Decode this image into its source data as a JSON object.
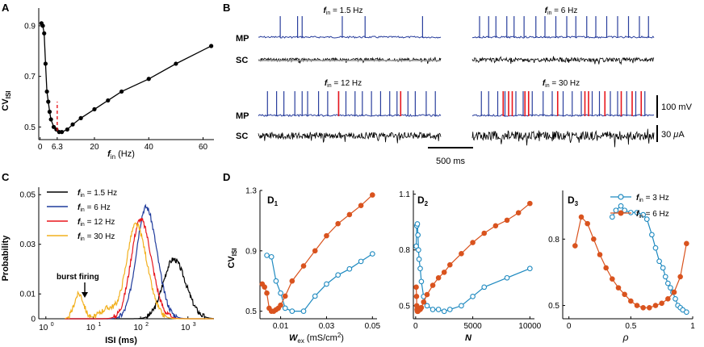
{
  "panel_labels": {
    "A": "A",
    "B": "B",
    "C": "C",
    "D": "D",
    "D1": "D",
    "D2": "D",
    "D3": "D",
    "sub1": "1",
    "sub2": "2",
    "sub3": "3"
  },
  "colors": {
    "black": "#000000",
    "blue": "#2a3f9d",
    "red": "#e8161c",
    "orange": "#d9531e",
    "teal": "#1f8ac0",
    "dashed_red": "#e8161c",
    "gold": "#f2b01e",
    "dblue": "#1f3b9c"
  },
  "panelA": {
    "ylabel_main": "CV",
    "ylabel_sub": "ISI",
    "xlabel_main": "f",
    "xlabel_sub": "in",
    "xlabel_unit": " (Hz)",
    "xticks": [
      {
        "v": 0,
        "label": "0"
      },
      {
        "v": 6.3,
        "label": "6.3"
      },
      {
        "v": 20,
        "label": "20"
      },
      {
        "v": 40,
        "label": "40"
      },
      {
        "v": 60,
        "label": "60"
      }
    ],
    "yticks": [
      {
        "v": 0.5,
        "label": "0.5"
      },
      {
        "v": 0.7,
        "label": "0.7"
      },
      {
        "v": 0.9,
        "label": "0.9"
      }
    ],
    "xlim": [
      -0.5,
      64
    ],
    "ylim": [
      0.45,
      0.97
    ],
    "marker_x": 6.3
  },
  "panelB": {
    "titles": [
      {
        "main": "f",
        "sub": "in",
        "rest": " = 1.5 Hz"
      },
      {
        "main": "f",
        "sub": "in",
        "rest": " = 6 Hz"
      },
      {
        "main": "f",
        "sub": "in",
        "rest": " = 12 Hz"
      },
      {
        "main": "f",
        "sub": "in",
        "rest": " = 30 Hz"
      }
    ],
    "mp_label": "MP",
    "sc_label": "SC",
    "scale_voltage": "100 mV",
    "scale_current_pre": "30 ",
    "scale_current_mu": "μ",
    "scale_current_post": "A",
    "scale_time": "500 ms",
    "spikes": [
      {
        "blue": [
          0.12,
          0.215,
          0.24,
          0.46,
          0.585,
          0.9
        ],
        "red": []
      },
      {
        "blue": [
          0.04,
          0.09,
          0.13,
          0.19,
          0.23,
          0.285,
          0.35,
          0.4,
          0.46,
          0.52,
          0.57,
          0.63,
          0.68,
          0.74,
          0.8,
          0.86,
          0.92,
          0.97
        ],
        "red": []
      },
      {
        "blue": [
          0.05,
          0.1,
          0.14,
          0.2,
          0.24,
          0.27,
          0.33,
          0.38,
          0.44,
          0.48,
          0.53,
          0.57,
          0.62,
          0.67,
          0.72,
          0.76,
          0.82,
          0.86,
          0.92,
          0.97
        ],
        "red": [
          0.44,
          0.78
        ]
      },
      {
        "blue": [
          0.05,
          0.09,
          0.14,
          0.18,
          0.24,
          0.28,
          0.33,
          0.39,
          0.44,
          0.5,
          0.55,
          0.6,
          0.66,
          0.7,
          0.76,
          0.8,
          0.85,
          0.9,
          0.95
        ],
        "red": [
          0.17,
          0.2,
          0.22,
          0.29,
          0.31,
          0.47,
          0.62,
          0.64,
          0.73,
          0.82,
          0.88,
          0.93
        ]
      }
    ]
  },
  "panelC": {
    "ylabel": "Probability",
    "xlabel": "ISI (ms)",
    "xticks": [
      {
        "v": 0,
        "label": "10",
        "exp": "0"
      },
      {
        "v": 1,
        "label": "10",
        "exp": "1"
      },
      {
        "v": 2,
        "label": "10",
        "exp": "2"
      },
      {
        "v": 3,
        "label": "10",
        "exp": "3"
      }
    ],
    "yticks": [
      {
        "v": 0,
        "label": "0"
      },
      {
        "v": 0.01,
        "label": "0.01"
      },
      {
        "v": 0.03,
        "label": "0.03"
      },
      {
        "v": 0.05,
        "label": "0.05"
      }
    ],
    "xlim_log": [
      -0.15,
      3.55
    ],
    "ylim": [
      0,
      0.053
    ],
    "annotation": "burst firing",
    "legend": [
      {
        "main": "f",
        "sub": "in",
        "rest": " = 1.5 Hz"
      },
      {
        "main": "f",
        "sub": "in",
        "rest": " = 6    Hz"
      },
      {
        "main": "f",
        "sub": "in",
        "rest": " = 12  Hz"
      },
      {
        "main": "f",
        "sub": "in",
        "rest": " = 30  Hz"
      }
    ]
  },
  "panelD": {
    "ylabel_main": "CV",
    "ylabel_sub": "ISI",
    "legend": [
      {
        "main": "f",
        "sub": "in",
        "rest": " = 3 Hz"
      },
      {
        "main": "f",
        "sub": "in",
        "rest": " = 6 Hz"
      }
    ],
    "D1": {
      "xlabel_main": "W",
      "xlabel_sub": "ex",
      "xlabel_unit": " (mS/cm",
      "xlabel_sup": "2",
      "xlabel_close": ")",
      "xticks": [
        {
          "v": 0.01,
          "label": "0.01"
        },
        {
          "v": 0.03,
          "label": "0.03"
        },
        {
          "v": 0.05,
          "label": "0.05"
        }
      ],
      "yticks": [
        {
          "v": 0.5,
          "label": "0.5"
        },
        {
          "v": 0.9,
          "label": "0.9"
        },
        {
          "v": 1.3,
          "label": "1.3"
        }
      ],
      "xlim": [
        0.001,
        0.052
      ],
      "ylim": [
        0.45,
        1.3
      ]
    },
    "D2": {
      "xlabel": "N",
      "xticks": [
        {
          "v": 0,
          "label": "0"
        },
        {
          "v": 5000,
          "label": "5000"
        },
        {
          "v": 10000,
          "label": "10000"
        }
      ],
      "yticks": [
        {
          "v": 0.5,
          "label": "0.5"
        },
        {
          "v": 0.8,
          "label": "0.8"
        },
        {
          "v": 1.1,
          "label": "1.1"
        }
      ],
      "xlim": [
        -200,
        10400
      ],
      "ylim": [
        0.43,
        1.12
      ]
    },
    "D3": {
      "xlabel": "ρ",
      "xticks": [
        {
          "v": 0,
          "label": "0"
        },
        {
          "v": 0.5,
          "label": "0.5"
        },
        {
          "v": 1,
          "label": "1"
        }
      ],
      "yticks": [
        {
          "v": 0.5,
          "label": "0.5"
        },
        {
          "v": 0.8,
          "label": "0.8"
        }
      ],
      "xlim": [
        -0.05,
        1.0
      ],
      "ylim": [
        0.44,
        1.02
      ]
    }
  },
  "chart_data": [
    {
      "type": "line",
      "panel": "A",
      "title": "",
      "xlabel": "f_in (Hz)",
      "ylabel": "CV_ISI",
      "x": [
        0.5,
        1,
        1.5,
        2,
        2.5,
        3,
        3.5,
        4,
        5,
        6,
        7,
        8,
        10,
        12,
        15,
        20,
        25,
        30,
        40,
        50,
        63
      ],
      "series": [
        {
          "name": "CV_ISI",
          "values": [
            0.91,
            0.9,
            0.87,
            0.75,
            0.64,
            0.6,
            0.56,
            0.53,
            0.5,
            0.49,
            0.48,
            0.48,
            0.49,
            0.51,
            0.535,
            0.57,
            0.605,
            0.64,
            0.69,
            0.75,
            0.82
          ]
        }
      ],
      "xlim": [
        -0.5,
        64
      ],
      "ylim": [
        0.45,
        0.97
      ]
    },
    {
      "type": "line",
      "panel": "C",
      "title": "",
      "xlabel": "ISI (ms)",
      "ylabel": "Probability",
      "xscale": "log",
      "series": [
        {
          "name": "f_in = 1.5 Hz",
          "peak_isi_ms": 500,
          "peak_probability": 0.024
        },
        {
          "name": "f_in = 6 Hz",
          "peak_isi_ms": 130,
          "peak_probability": 0.045
        },
        {
          "name": "f_in = 12 Hz",
          "peak_isi_ms": 100,
          "peak_probability": 0.04
        },
        {
          "name": "f_in = 30 Hz",
          "peak_isi_ms": 80,
          "peak_probability": 0.038,
          "burst_peak_isi_ms": 5,
          "burst_peak_probability": 0.01
        }
      ],
      "ylim": [
        0,
        0.053
      ]
    },
    {
      "type": "line",
      "panel": "D1",
      "title": "",
      "xlabel": "W_ex (mS/cm2)",
      "ylabel": "CV_ISI",
      "series": [
        {
          "name": "f_in = 3 Hz",
          "x": [
            0.004,
            0.006,
            0.008,
            0.01,
            0.012,
            0.015,
            0.02,
            0.025,
            0.03,
            0.035,
            0.04,
            0.045,
            0.05
          ],
          "values": [
            0.87,
            0.86,
            0.7,
            0.62,
            0.52,
            0.5,
            0.5,
            0.6,
            0.68,
            0.74,
            0.78,
            0.83,
            0.88
          ]
        },
        {
          "name": "f_in = 6 Hz",
          "x": [
            0.002,
            0.003,
            0.004,
            0.005,
            0.006,
            0.007,
            0.008,
            0.009,
            0.01,
            0.012,
            0.015,
            0.02,
            0.025,
            0.03,
            0.035,
            0.04,
            0.045,
            0.05
          ],
          "values": [
            0.68,
            0.66,
            0.62,
            0.52,
            0.5,
            0.5,
            0.51,
            0.52,
            0.54,
            0.6,
            0.7,
            0.8,
            0.9,
            1.0,
            1.08,
            1.14,
            1.2,
            1.27
          ]
        }
      ],
      "xlim": [
        0.001,
        0.052
      ],
      "ylim": [
        0.45,
        1.3
      ]
    },
    {
      "type": "line",
      "panel": "D2",
      "title": "",
      "xlabel": "N",
      "ylabel": "CV_ISI",
      "series": [
        {
          "name": "f_in = 3 Hz",
          "x": [
            50,
            100,
            150,
            200,
            250,
            300,
            400,
            500,
            700,
            1000,
            1500,
            2000,
            2500,
            3000,
            4000,
            5000,
            6000,
            8000,
            10000
          ],
          "values": [
            0.82,
            0.93,
            0.94,
            0.88,
            0.8,
            0.75,
            0.7,
            0.63,
            0.55,
            0.5,
            0.48,
            0.48,
            0.47,
            0.48,
            0.5,
            0.55,
            0.6,
            0.65,
            0.7
          ]
        },
        {
          "name": "f_in = 6 Hz",
          "x": [
            50,
            80,
            100,
            120,
            150,
            200,
            250,
            300,
            400,
            500,
            700,
            1000,
            1500,
            2000,
            2500,
            3000,
            4000,
            5000,
            6000,
            7000,
            8000,
            9000,
            10000
          ],
          "values": [
            0.6,
            0.55,
            0.5,
            0.48,
            0.47,
            0.47,
            0.48,
            0.48,
            0.48,
            0.49,
            0.52,
            0.56,
            0.61,
            0.65,
            0.68,
            0.72,
            0.78,
            0.84,
            0.89,
            0.93,
            0.96,
            1.0,
            1.05
          ]
        }
      ],
      "xlim": [
        -200,
        10400
      ],
      "ylim": [
        0.43,
        1.12
      ]
    },
    {
      "type": "line",
      "panel": "D3",
      "title": "",
      "xlabel": "ρ",
      "ylabel": "CV_ISI",
      "series": [
        {
          "name": "f_in = 3 Hz",
          "x": [
            0.35,
            0.38,
            0.42,
            0.45,
            0.5,
            0.55,
            0.6,
            0.63,
            0.67,
            0.7,
            0.73,
            0.76,
            0.78,
            0.8,
            0.82,
            0.84,
            0.86,
            0.88,
            0.9,
            0.92,
            0.95
          ],
          "values": [
            0.9,
            0.93,
            0.95,
            0.93,
            0.92,
            0.92,
            0.91,
            0.89,
            0.82,
            0.76,
            0.7,
            0.67,
            0.63,
            0.6,
            0.58,
            0.56,
            0.53,
            0.5,
            0.49,
            0.48,
            0.47
          ]
        },
        {
          "name": "f_in = 6 Hz",
          "x": [
            0.05,
            0.1,
            0.15,
            0.2,
            0.25,
            0.3,
            0.35,
            0.4,
            0.45,
            0.5,
            0.55,
            0.6,
            0.65,
            0.7,
            0.75,
            0.8,
            0.85,
            0.9,
            0.95
          ],
          "values": [
            0.77,
            0.9,
            0.87,
            0.8,
            0.73,
            0.67,
            0.62,
            0.58,
            0.55,
            0.52,
            0.5,
            0.49,
            0.49,
            0.5,
            0.51,
            0.53,
            0.56,
            0.63,
            0.78
          ]
        }
      ],
      "xlim": [
        -0.05,
        1.0
      ],
      "ylim": [
        0.44,
        1.02
      ]
    }
  ]
}
